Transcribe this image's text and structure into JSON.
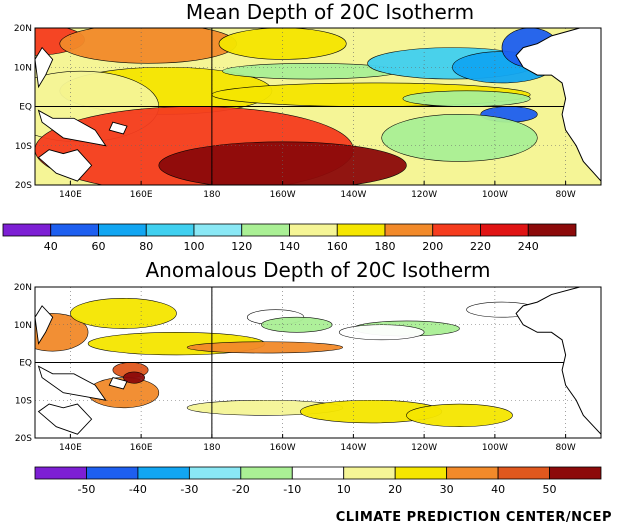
{
  "credit": "CLIMATE PREDICTION CENTER/NCEP",
  "chart_data": [
    {
      "type": "heatmap",
      "title": "Mean Depth of 20C Isotherm",
      "x_ticks": [
        "140E",
        "160E",
        "180",
        "160W",
        "140W",
        "120W",
        "100W",
        "80W"
      ],
      "y_ticks": [
        "20N",
        "10N",
        "EQ",
        "10S",
        "20S"
      ],
      "colorbar": {
        "labels": [
          "40",
          "60",
          "80",
          "100",
          "120",
          "140",
          "160",
          "180",
          "200",
          "220",
          "240"
        ],
        "colors": [
          "#7d1fd4",
          "#1e5ff0",
          "#12a6f2",
          "#40d0f0",
          "#8ae8f5",
          "#aaf095",
          "#f5f596",
          "#f5e600",
          "#f28a2a",
          "#f53c1e",
          "#e01414",
          "#8c0a0a"
        ]
      },
      "regions": [
        {
          "lon": 129,
          "lat": 17,
          "rx": 15,
          "ry": 4,
          "value": 200
        },
        {
          "lon": 162,
          "lat": 16,
          "rx": 25,
          "ry": 5,
          "value": 180
        },
        {
          "lon": 167,
          "lat": 4,
          "rx": 30,
          "ry": 6,
          "value": 175
        },
        {
          "lon": 143,
          "lat": 0,
          "rx": 22,
          "ry": 9,
          "value": 140
        },
        {
          "lon": 175,
          "lat": -11,
          "rx": 45,
          "ry": 11,
          "value": 210
        },
        {
          "lon": 200,
          "lat": -15,
          "rx": 35,
          "ry": 6,
          "value": 240
        },
        {
          "lon": 200,
          "lat": 16,
          "rx": 18,
          "ry": 4,
          "value": 160
        },
        {
          "lon": 225,
          "lat": 3,
          "rx": 45,
          "ry": 3,
          "value": 160
        },
        {
          "lon": 208,
          "lat": 9,
          "rx": 25,
          "ry": 2,
          "value": 120
        },
        {
          "lon": 248,
          "lat": 11,
          "rx": 24,
          "ry": 4,
          "value": 80
        },
        {
          "lon": 262,
          "lat": 10,
          "rx": 14,
          "ry": 4,
          "value": 60
        },
        {
          "lon": 252,
          "lat": 2,
          "rx": 18,
          "ry": 2,
          "value": 120
        },
        {
          "lon": 264,
          "lat": -2,
          "rx": 8,
          "ry": 2,
          "value": 40
        },
        {
          "lon": 250,
          "lat": -8,
          "rx": 22,
          "ry": 6,
          "value": 130
        },
        {
          "lon": 270,
          "lat": 15,
          "rx": 8,
          "ry": 5,
          "value": 40
        }
      ]
    },
    {
      "type": "heatmap",
      "title": "Anomalous Depth of 20C Isotherm",
      "x_ticks": [
        "140E",
        "160E",
        "180",
        "160W",
        "140W",
        "120W",
        "100W",
        "80W"
      ],
      "y_ticks": [
        "20N",
        "10N",
        "EQ",
        "10S",
        "20S"
      ],
      "colorbar": {
        "labels": [
          "-50",
          "-40",
          "-30",
          "-20",
          "-10",
          "10",
          "20",
          "30",
          "40",
          "50"
        ],
        "colors": [
          "#7d1fd4",
          "#1e5ff0",
          "#12a6f2",
          "#8ae8f5",
          "#aaf095",
          "#ffffff",
          "#f5f596",
          "#f5e600",
          "#f28a2a",
          "#e0581e",
          "#8c0a0a"
        ]
      },
      "regions": [
        {
          "lon": 135,
          "lat": 8,
          "rx": 10,
          "ry": 5,
          "value": 30
        },
        {
          "lon": 155,
          "lat": 13,
          "rx": 15,
          "ry": 4,
          "value": 20
        },
        {
          "lon": 155,
          "lat": -8,
          "rx": 10,
          "ry": 4,
          "value": 30
        },
        {
          "lon": 170,
          "lat": 5,
          "rx": 25,
          "ry": 3,
          "value": 20
        },
        {
          "lon": 195,
          "lat": 4,
          "rx": 22,
          "ry": 1.5,
          "value": 30
        },
        {
          "lon": 198,
          "lat": 12,
          "rx": 8,
          "ry": 2,
          "value": -10
        },
        {
          "lon": 204,
          "lat": 10,
          "rx": 10,
          "ry": 2,
          "value": -20
        },
        {
          "lon": 235,
          "lat": 9,
          "rx": 15,
          "ry": 2,
          "value": -20
        },
        {
          "lon": 228,
          "lat": 8,
          "rx": 12,
          "ry": 2,
          "value": -10
        },
        {
          "lon": 262,
          "lat": 14,
          "rx": 10,
          "ry": 2,
          "value": -10
        },
        {
          "lon": 157,
          "lat": -2,
          "rx": 5,
          "ry": 2,
          "value": 40
        },
        {
          "lon": 158,
          "lat": -4,
          "rx": 3,
          "ry": 1.5,
          "value": 50
        },
        {
          "lon": 195,
          "lat": -12,
          "rx": 22,
          "ry": 2,
          "value": 10
        },
        {
          "lon": 225,
          "lat": -13,
          "rx": 20,
          "ry": 3,
          "value": 20
        },
        {
          "lon": 250,
          "lat": -14,
          "rx": 15,
          "ry": 3,
          "value": 20
        }
      ]
    }
  ]
}
